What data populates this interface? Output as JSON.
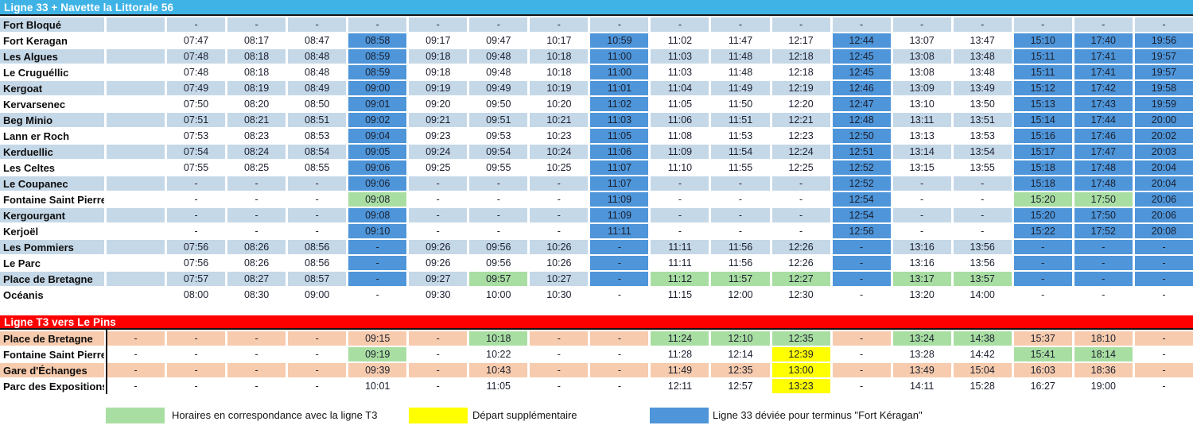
{
  "colors": {
    "header_blue": "#3FB3E6",
    "header_red": "#FE0000",
    "band_blue": "#C5D8E8",
    "band_salmon": "#F7CBAD",
    "hl_blue": "#4E95D9",
    "hl_green": "#A9DEA2",
    "hl_yellow": "#FFFF00"
  },
  "line33": {
    "title": "Ligne 33 + Navette la Littorale 56",
    "rows": [
      {
        "station": "Fort Bloqué",
        "cells": [
          "",
          "-",
          "-",
          "-",
          "-",
          "-",
          "-",
          "-",
          "-",
          "-",
          "-",
          "-",
          "-",
          "-",
          "-",
          "-",
          "-",
          "-"
        ],
        "hl": {}
      },
      {
        "station": "Fort Keragan",
        "cells": [
          "",
          "07:47",
          "08:17",
          "08:47",
          "08:58",
          "09:17",
          "09:47",
          "10:17",
          "10:59",
          "11:02",
          "11:47",
          "12:17",
          "12:44",
          "13:07",
          "13:47",
          "15:10",
          "17:40",
          "19:56"
        ],
        "hl": {
          "4": "blue",
          "8": "blue",
          "12": "blue",
          "15": "blue",
          "16": "blue",
          "17": "blue"
        }
      },
      {
        "station": "Les Algues",
        "cells": [
          "",
          "07:48",
          "08:18",
          "08:48",
          "08:59",
          "09:18",
          "09:48",
          "10:18",
          "11:00",
          "11:03",
          "11:48",
          "12:18",
          "12:45",
          "13:08",
          "13:48",
          "15:11",
          "17:41",
          "19:57"
        ],
        "hl": {
          "4": "blue",
          "8": "blue",
          "12": "blue",
          "15": "blue",
          "16": "blue",
          "17": "blue"
        }
      },
      {
        "station": "Le Cruguéllic",
        "cells": [
          "",
          "07:48",
          "08:18",
          "08:48",
          "08:59",
          "09:18",
          "09:48",
          "10:18",
          "11:00",
          "11:03",
          "11:48",
          "12:18",
          "12:45",
          "13:08",
          "13:48",
          "15:11",
          "17:41",
          "19:57"
        ],
        "hl": {
          "4": "blue",
          "8": "blue",
          "12": "blue",
          "15": "blue",
          "16": "blue",
          "17": "blue"
        }
      },
      {
        "station": "Kergoat",
        "cells": [
          "",
          "07:49",
          "08:19",
          "08:49",
          "09:00",
          "09:19",
          "09:49",
          "10:19",
          "11:01",
          "11:04",
          "11:49",
          "12:19",
          "12:46",
          "13:09",
          "13:49",
          "15:12",
          "17:42",
          "19:58"
        ],
        "hl": {
          "4": "blue",
          "8": "blue",
          "12": "blue",
          "15": "blue",
          "16": "blue",
          "17": "blue"
        }
      },
      {
        "station": "Kervarsenec",
        "cells": [
          "",
          "07:50",
          "08:20",
          "08:50",
          "09:01",
          "09:20",
          "09:50",
          "10:20",
          "11:02",
          "11:05",
          "11:50",
          "12:20",
          "12:47",
          "13:10",
          "13:50",
          "15:13",
          "17:43",
          "19:59"
        ],
        "hl": {
          "4": "blue",
          "8": "blue",
          "12": "blue",
          "15": "blue",
          "16": "blue",
          "17": "blue"
        }
      },
      {
        "station": "Beg Minio",
        "cells": [
          "",
          "07:51",
          "08:21",
          "08:51",
          "09:02",
          "09:21",
          "09:51",
          "10:21",
          "11:03",
          "11:06",
          "11:51",
          "12:21",
          "12:48",
          "13:11",
          "13:51",
          "15:14",
          "17:44",
          "20:00"
        ],
        "hl": {
          "4": "blue",
          "8": "blue",
          "12": "blue",
          "15": "blue",
          "16": "blue",
          "17": "blue"
        }
      },
      {
        "station": "Lann er Roch",
        "cells": [
          "",
          "07:53",
          "08:23",
          "08:53",
          "09:04",
          "09:23",
          "09:53",
          "10:23",
          "11:05",
          "11:08",
          "11:53",
          "12:23",
          "12:50",
          "13:13",
          "13:53",
          "15:16",
          "17:46",
          "20:02"
        ],
        "hl": {
          "4": "blue",
          "8": "blue",
          "12": "blue",
          "15": "blue",
          "16": "blue",
          "17": "blue"
        }
      },
      {
        "station": "Kerduellic",
        "cells": [
          "",
          "07:54",
          "08:24",
          "08:54",
          "09:05",
          "09:24",
          "09:54",
          "10:24",
          "11:06",
          "11:09",
          "11:54",
          "12:24",
          "12:51",
          "13:14",
          "13:54",
          "15:17",
          "17:47",
          "20:03"
        ],
        "hl": {
          "4": "blue",
          "8": "blue",
          "12": "blue",
          "15": "blue",
          "16": "blue",
          "17": "blue"
        }
      },
      {
        "station": "Les Celtes",
        "cells": [
          "",
          "07:55",
          "08:25",
          "08:55",
          "09:06",
          "09:25",
          "09:55",
          "10:25",
          "11:07",
          "11:10",
          "11:55",
          "12:25",
          "12:52",
          "13:15",
          "13:55",
          "15:18",
          "17:48",
          "20:04"
        ],
        "hl": {
          "4": "blue",
          "8": "blue",
          "12": "blue",
          "15": "blue",
          "16": "blue",
          "17": "blue"
        }
      },
      {
        "station": "Le Coupanec",
        "cells": [
          "",
          "-",
          "-",
          "-",
          "09:06",
          "-",
          "-",
          "-",
          "11:07",
          "-",
          "-",
          "-",
          "12:52",
          "-",
          "-",
          "15:18",
          "17:48",
          "20:04"
        ],
        "hl": {
          "4": "blue",
          "8": "blue",
          "12": "blue",
          "15": "blue",
          "16": "blue",
          "17": "blue"
        }
      },
      {
        "station": "Fontaine Saint Pierre",
        "cells": [
          "",
          "-",
          "-",
          "-",
          "09:08",
          "-",
          "-",
          "-",
          "11:09",
          "-",
          "-",
          "-",
          "12:54",
          "-",
          "-",
          "15:20",
          "17:50",
          "20:06"
        ],
        "hl": {
          "4": "green",
          "8": "blue",
          "12": "blue",
          "15": "green",
          "16": "green",
          "17": "blue"
        }
      },
      {
        "station": "Kergourgant",
        "cells": [
          "",
          "-",
          "-",
          "-",
          "09:08",
          "-",
          "-",
          "-",
          "11:09",
          "-",
          "-",
          "-",
          "12:54",
          "-",
          "-",
          "15:20",
          "17:50",
          "20:06"
        ],
        "hl": {
          "4": "blue",
          "8": "blue",
          "12": "blue",
          "15": "blue",
          "16": "blue",
          "17": "blue"
        }
      },
      {
        "station": "Kerjoël",
        "cells": [
          "",
          "-",
          "-",
          "-",
          "09:10",
          "-",
          "-",
          "-",
          "11:11",
          "-",
          "-",
          "-",
          "12:56",
          "-",
          "-",
          "15:22",
          "17:52",
          "20:08"
        ],
        "hl": {
          "4": "blue",
          "8": "blue",
          "12": "blue",
          "15": "blue",
          "16": "blue",
          "17": "blue"
        }
      },
      {
        "station": "Les Pommiers",
        "cells": [
          "",
          "07:56",
          "08:26",
          "08:56",
          "-",
          "09:26",
          "09:56",
          "10:26",
          "-",
          "11:11",
          "11:56",
          "12:26",
          "-",
          "13:16",
          "13:56",
          "-",
          "-",
          "-"
        ],
        "hl": {
          "4": "blue",
          "8": "blue",
          "12": "blue",
          "15": "blue",
          "16": "blue",
          "17": "blue"
        }
      },
      {
        "station": "Le Parc",
        "cells": [
          "",
          "07:56",
          "08:26",
          "08:56",
          "-",
          "09:26",
          "09:56",
          "10:26",
          "-",
          "11:11",
          "11:56",
          "12:26",
          "-",
          "13:16",
          "13:56",
          "-",
          "-",
          "-"
        ],
        "hl": {
          "4": "blue",
          "8": "blue",
          "12": "blue",
          "15": "blue",
          "16": "blue",
          "17": "blue"
        }
      },
      {
        "station": "Place de Bretagne",
        "cells": [
          "",
          "07:57",
          "08:27",
          "08:57",
          "-",
          "09:27",
          "09:57",
          "10:27",
          "-",
          "11:12",
          "11:57",
          "12:27",
          "-",
          "13:17",
          "13:57",
          "-",
          "-",
          "-"
        ],
        "hl": {
          "4": "blue",
          "6": "green",
          "8": "blue",
          "9": "green",
          "10": "green",
          "11": "green",
          "12": "blue",
          "13": "green",
          "14": "green",
          "15": "blue",
          "16": "blue",
          "17": "blue"
        }
      },
      {
        "station": "Océanis",
        "cells": [
          "",
          "08:00",
          "08:30",
          "09:00",
          "-",
          "09:30",
          "10:00",
          "10:30",
          "-",
          "11:15",
          "12:00",
          "12:30",
          "-",
          "13:20",
          "14:00",
          "-",
          "-",
          "-"
        ],
        "hl": {}
      }
    ]
  },
  "t3": {
    "title": "Ligne T3 vers Le Pins",
    "rows": [
      {
        "station": "Place de Bretagne",
        "cells": [
          "-",
          "-",
          "-",
          "-",
          "09:15",
          "-",
          "10:18",
          "-",
          "-",
          "11:24",
          "12:10",
          "12:35",
          "-",
          "13:24",
          "14:38",
          "15:37",
          "18:10",
          "-"
        ],
        "hl": {
          "6": "green",
          "9": "green",
          "10": "green",
          "11": "green",
          "13": "green",
          "14": "green"
        }
      },
      {
        "station": "Fontaine Saint Pierre",
        "cells": [
          "-",
          "-",
          "-",
          "-",
          "09:19",
          "-",
          "10:22",
          "-",
          "-",
          "11:28",
          "12:14",
          "12:39",
          "-",
          "13:28",
          "14:42",
          "15:41",
          "18:14",
          "-"
        ],
        "hl": {
          "4": "green",
          "11": "yellow",
          "15": "green",
          "16": "green"
        }
      },
      {
        "station": "Gare d'Échanges",
        "cells": [
          "-",
          "-",
          "-",
          "-",
          "09:39",
          "-",
          "10:43",
          "-",
          "-",
          "11:49",
          "12:35",
          "13:00",
          "-",
          "13:49",
          "15:04",
          "16:03",
          "18:36",
          "-"
        ],
        "hl": {
          "11": "yellow"
        }
      },
      {
        "station": "Parc des Expositions",
        "cells": [
          "-",
          "-",
          "-",
          "-",
          "10:01",
          "-",
          "11:05",
          "-",
          "-",
          "12:11",
          "12:57",
          "13:23",
          "-",
          "14:11",
          "15:28",
          "16:27",
          "19:00",
          "-"
        ],
        "hl": {
          "11": "yellow"
        }
      }
    ]
  },
  "legend": {
    "items": [
      {
        "label": "Horaires en correspondance avec la ligne T3",
        "color_key": "hl_green"
      },
      {
        "label": "Départ supplémentaire",
        "color_key": "hl_yellow"
      },
      {
        "label": "Ligne 33 déviée pour terminus \"Fort Kéragan\"",
        "color_key": "hl_blue"
      }
    ]
  }
}
